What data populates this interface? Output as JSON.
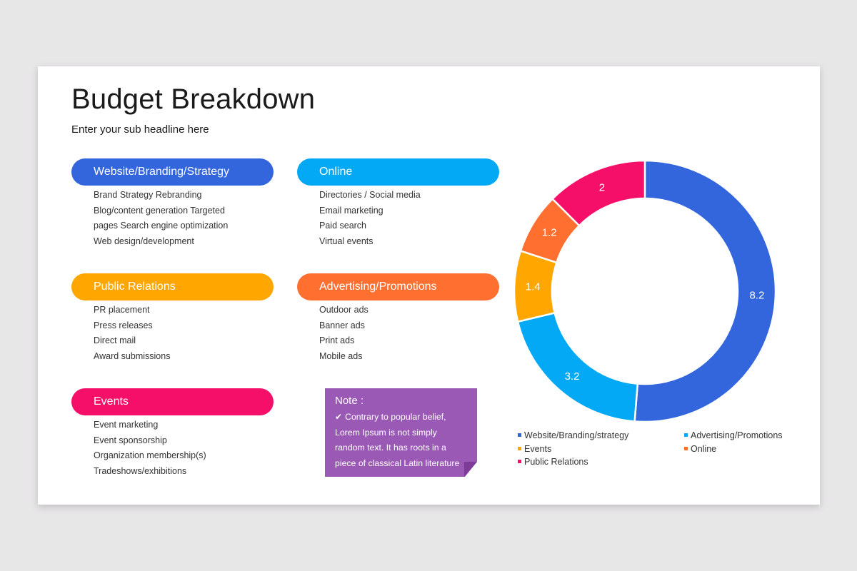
{
  "header": {
    "title": "Budget Breakdown",
    "subtitle": "Enter your sub headline here"
  },
  "categories": [
    {
      "label": "Website/Branding/Strategy",
      "color": "#3366dd",
      "items": [
        "Brand Strategy Rebranding",
        "Blog/content generation Targeted",
        "pages Search engine optimization",
        "Web design/development"
      ]
    },
    {
      "label": "Online",
      "color": "#03a9f4",
      "items": [
        "Directories / Social media",
        "Email marketing",
        "Paid search",
        "Virtual events"
      ]
    },
    {
      "label": "Public Relations",
      "color": "#ffa600",
      "items": [
        "PR placement",
        "Press releases",
        "Direct mail",
        "Award submissions"
      ]
    },
    {
      "label": "Advertising/Promotions",
      "color": "#ff6f30",
      "items": [
        "Outdoor ads",
        "Banner ads",
        "Print ads",
        "Mobile ads"
      ]
    },
    {
      "label": "Events",
      "color": "#f50f68",
      "items": [
        "Event marketing",
        "Event sponsorship",
        "Organization membership(s)",
        "Tradeshows/exhibitions"
      ]
    }
  ],
  "note": {
    "title": "Note :",
    "icon": "check-icon",
    "lines": [
      "Contrary to popular belief,",
      "Lorem Ipsum is not simply",
      "random text.  It has roots in a",
      "piece of classical Latin literature"
    ]
  },
  "chart_data": {
    "type": "pie",
    "title": "",
    "start_angle_deg": 0,
    "direction": "clockwise",
    "slices": [
      {
        "legend": "Website/Branding/strategy",
        "value": 8.2,
        "color": "#3366dd"
      },
      {
        "legend": "Advertising/Promotions",
        "value": 3.2,
        "color": "#03a9f4"
      },
      {
        "legend": "Events",
        "value": 1.4,
        "color": "#ffa600"
      },
      {
        "legend": "Online",
        "value": 1.2,
        "color": "#ff6f30"
      },
      {
        "legend": "Public Relations",
        "value": 2,
        "color": "#f50f68"
      }
    ],
    "legend": {
      "placement": "bottom",
      "entries": [
        {
          "label": "Website/Branding/strategy",
          "color": "#3366dd"
        },
        {
          "label": "Advertising/Promotions",
          "color": "#03a9f4"
        },
        {
          "label": "Events",
          "color": "#ffa600"
        },
        {
          "label": "Online",
          "color": "#ff6f30"
        },
        {
          "label": "Public Relations",
          "color": "#f50f68"
        }
      ]
    }
  }
}
